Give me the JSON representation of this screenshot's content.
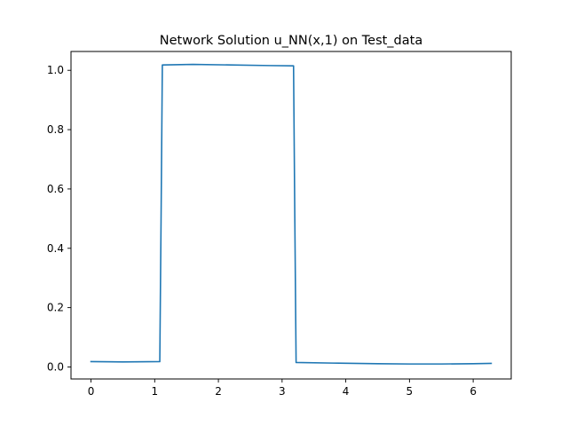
{
  "chart_data": {
    "type": "line",
    "title": "Network Solution u_NN(x,1) on Test_data",
    "xlabel": "",
    "ylabel": "",
    "xlim": [
      -0.3142,
      6.5973
    ],
    "ylim": [
      -0.0405,
      1.0635
    ],
    "xticks": [
      0,
      1,
      2,
      3,
      4,
      5,
      6
    ],
    "xtick_labels": [
      "0",
      "1",
      "2",
      "3",
      "4",
      "5",
      "6"
    ],
    "yticks": [
      0.0,
      0.2,
      0.4,
      0.6,
      0.8,
      1.0
    ],
    "ytick_labels": [
      "0.0",
      "0.2",
      "0.4",
      "0.6",
      "0.8",
      "1.0"
    ],
    "grid": false,
    "series": [
      {
        "color": "#1f77b4",
        "x": [
          0.0,
          0.5,
          1.08,
          1.1,
          1.12,
          1.6,
          2.2,
          2.8,
          3.18,
          3.2,
          3.22,
          3.8,
          4.5,
          5.0,
          5.5,
          6.0,
          6.283
        ],
        "y": [
          0.018,
          0.017,
          0.018,
          0.5,
          1.018,
          1.02,
          1.018,
          1.016,
          1.015,
          0.5,
          0.015,
          0.013,
          0.011,
          0.01,
          0.01,
          0.011,
          0.012
        ]
      }
    ]
  }
}
